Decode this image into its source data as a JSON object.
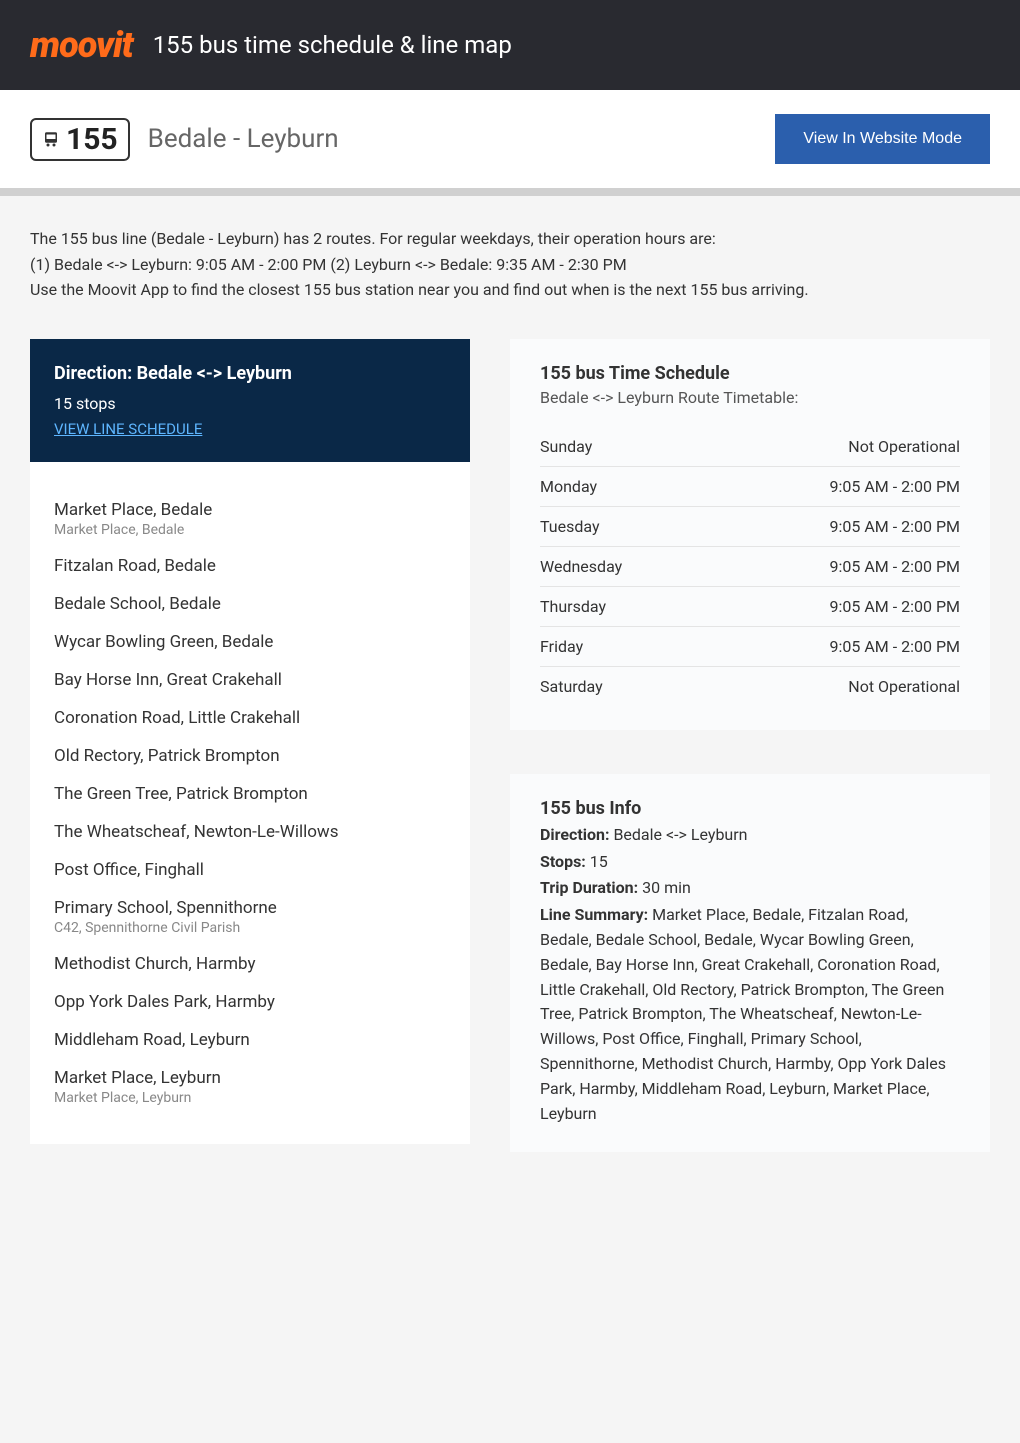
{
  "header": {
    "logo": "moovit",
    "title": "155 bus time schedule & line map",
    "logo_color": "#ff6b1a"
  },
  "routeBar": {
    "number": "155",
    "name": "Bedale - Leyburn",
    "websiteBtn": "View In Website Mode",
    "btn_bg": "#2b5fad"
  },
  "intro": "The 155 bus line (Bedale - Leyburn) has 2 routes. For regular weekdays, their operation hours are:\n(1) Bedale <-> Leyburn: 9:05 AM - 2:00 PM (2) Leyburn <-> Bedale: 9:35 AM - 2:30 PM\nUse the Moovit App to find the closest 155 bus station near you and find out when is the next 155 bus arriving.",
  "direction": {
    "title": "Direction: Bedale <-> Leyburn",
    "stopsCount": "15 stops",
    "link": "VIEW LINE SCHEDULE",
    "bg": "#0a2847",
    "link_color": "#5eb6ff"
  },
  "stops": [
    {
      "name": "Market Place, Bedale",
      "sub": "Market Place, Bedale"
    },
    {
      "name": "Fitzalan Road, Bedale",
      "sub": ""
    },
    {
      "name": "Bedale School, Bedale",
      "sub": ""
    },
    {
      "name": "Wycar Bowling Green, Bedale",
      "sub": ""
    },
    {
      "name": "Bay Horse Inn, Great Crakehall",
      "sub": ""
    },
    {
      "name": "Coronation Road, Little Crakehall",
      "sub": ""
    },
    {
      "name": "Old Rectory, Patrick Brompton",
      "sub": ""
    },
    {
      "name": "The Green Tree, Patrick Brompton",
      "sub": ""
    },
    {
      "name": "The Wheatscheaf, Newton-Le-Willows",
      "sub": ""
    },
    {
      "name": "Post Office, Finghall",
      "sub": ""
    },
    {
      "name": "Primary School, Spennithorne",
      "sub": "C42, Spennithorne Civil Parish"
    },
    {
      "name": "Methodist Church, Harmby",
      "sub": ""
    },
    {
      "name": "Opp York Dales Park, Harmby",
      "sub": ""
    },
    {
      "name": "Middleham Road, Leyburn",
      "sub": ""
    },
    {
      "name": "Market Place, Leyburn",
      "sub": "Market Place, Leyburn"
    }
  ],
  "schedule": {
    "title": "155 bus Time Schedule",
    "subtitle": "Bedale <-> Leyburn Route Timetable:",
    "rows": [
      {
        "day": "Sunday",
        "hours": "Not Operational"
      },
      {
        "day": "Monday",
        "hours": "9:05 AM - 2:00 PM"
      },
      {
        "day": "Tuesday",
        "hours": "9:05 AM - 2:00 PM"
      },
      {
        "day": "Wednesday",
        "hours": "9:05 AM - 2:00 PM"
      },
      {
        "day": "Thursday",
        "hours": "9:05 AM - 2:00 PM"
      },
      {
        "day": "Friday",
        "hours": "9:05 AM - 2:00 PM"
      },
      {
        "day": "Saturday",
        "hours": "Not Operational"
      }
    ]
  },
  "info": {
    "title": "155 bus Info",
    "directionLabel": "Direction:",
    "directionValue": " Bedale <-> Leyburn",
    "stopsLabel": "Stops:",
    "stopsValue": " 15",
    "durationLabel": "Trip Duration:",
    "durationValue": " 30 min",
    "summaryLabel": "Line Summary:",
    "summaryValue": " Market Place, Bedale, Fitzalan Road, Bedale, Bedale School, Bedale, Wycar Bowling Green, Bedale, Bay Horse Inn, Great Crakehall, Coronation Road, Little Crakehall, Old Rectory, Patrick Brompton, The Green Tree, Patrick Brompton, The Wheatscheaf, Newton-Le-Willows, Post Office, Finghall, Primary School, Spennithorne, Methodist Church, Harmby, Opp York Dales Park, Harmby, Middleham Road, Leyburn, Market Place, Leyburn"
  }
}
